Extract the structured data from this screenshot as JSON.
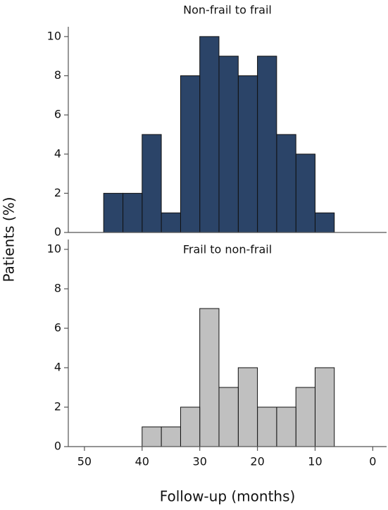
{
  "chart_data": [
    {
      "type": "histogram",
      "title": "Non-frail to frail",
      "y_label": "Patients (%)",
      "bins": [
        6.67,
        10,
        13.33,
        16.67,
        20,
        23.33,
        26.67,
        30,
        33.33,
        36.67,
        40,
        43.33,
        46.67
      ],
      "counts": [
        1,
        4,
        5,
        9,
        8,
        9,
        10,
        8,
        1,
        5,
        2,
        2
      ],
      "color": "#2b4468",
      "xlim": [
        52.8,
        -2.4
      ],
      "ylim": [
        0,
        10.5
      ],
      "yticks": [
        0,
        2,
        4,
        6,
        8,
        10
      ]
    },
    {
      "type": "histogram",
      "title": "Frail to non-frail",
      "x_label": "Follow-up (months)",
      "bins": [
        6.67,
        10,
        13.33,
        16.67,
        20,
        23.33,
        26.67,
        30,
        33.33,
        36.67,
        40
      ],
      "counts": [
        4,
        3,
        2,
        2,
        4,
        3,
        7,
        2,
        1,
        1
      ],
      "color": "#c0c0c0",
      "xlim": [
        52.8,
        -2.4
      ],
      "ylim": [
        0,
        10.5
      ],
      "yticks": [
        0,
        2,
        4,
        6,
        8,
        10
      ],
      "xticks": [
        50,
        40,
        30,
        20,
        10,
        0
      ]
    }
  ]
}
